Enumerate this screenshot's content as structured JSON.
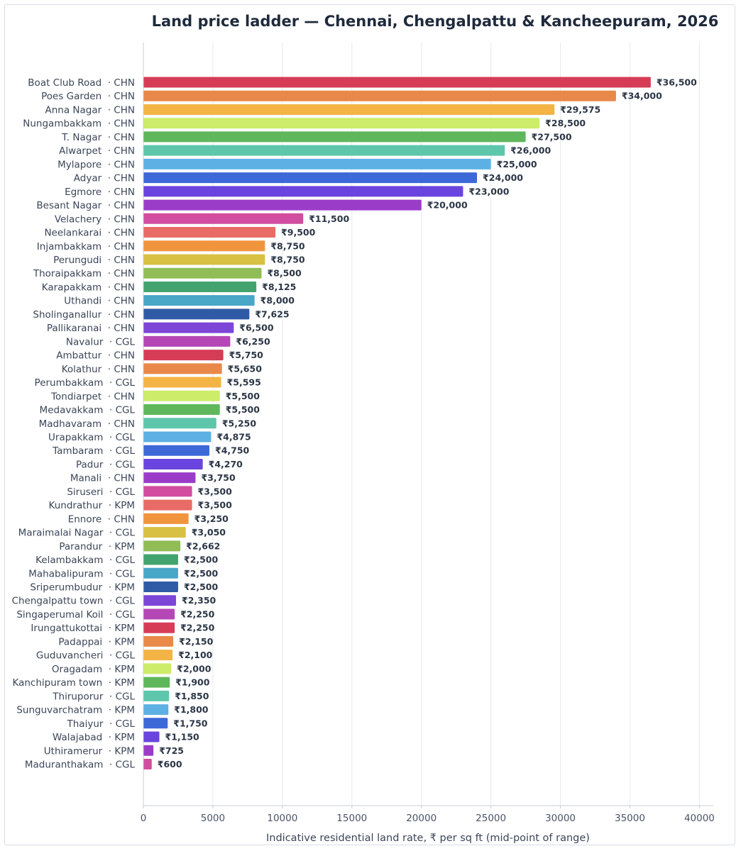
{
  "chart_data": {
    "type": "bar",
    "orientation": "horizontal",
    "title": "Land price ladder — Chennai, Chengalpattu & Kancheepuram, 2026",
    "xlabel": "Indicative residential land rate, ₹ per sq ft (mid-point of range)",
    "ylabel": "",
    "xlim": [
      0,
      41000
    ],
    "xticks": [
      0,
      5000,
      10000,
      15000,
      20000,
      25000,
      30000,
      35000,
      40000
    ],
    "grid": "vertical",
    "legend": "none",
    "categories": [
      "Boat Club Road  · CHN",
      "Poes Garden  · CHN",
      "Anna Nagar  · CHN",
      "Nungambakkam  · CHN",
      "T. Nagar  · CHN",
      "Alwarpet  · CHN",
      "Mylapore  · CHN",
      "Adyar  · CHN",
      "Egmore  · CHN",
      "Besant Nagar  · CHN",
      "Velachery  · CHN",
      "Neelankarai  · CHN",
      "Injambakkam  · CHN",
      "Perungudi  · CHN",
      "Thoraipakkam  · CHN",
      "Karapakkam  · CHN",
      "Uthandi  · CHN",
      "Sholinganallur  · CHN",
      "Pallikaranai  · CHN",
      "Navalur  · CGL",
      "Ambattur  · CHN",
      "Kolathur  · CHN",
      "Perumbakkam  · CGL",
      "Tondiarpet  · CHN",
      "Medavakkam  · CGL",
      "Madhavaram  · CHN",
      "Urapakkam  · CGL",
      "Tambaram  · CGL",
      "Padur  · CGL",
      "Manali  · CHN",
      "Siruseri  · CGL",
      "Kundrathur  · KPM",
      "Ennore  · CHN",
      "Maraimalai Nagar  · CGL",
      "Parandur  · KPM",
      "Kelambakkam  · CGL",
      "Mahabalipuram  · CGL",
      "Sriperumbudur  · KPM",
      "Chengalpattu town  · CGL",
      "Singaperumal Koil  · CGL",
      "Irungattukottai  · KPM",
      "Padappai  · KPM",
      "Guduvancheri  · CGL",
      "Oragadam  · KPM",
      "Kanchipuram town  · KPM",
      "Thiruporur  · CGL",
      "Sunguvarchatram  · KPM",
      "Thaiyur  · CGL",
      "Walajabad  · KPM",
      "Uthiramerur  · KPM",
      "Maduranthakam  · CGL"
    ],
    "values": [
      36500,
      34000,
      29575,
      28500,
      27500,
      26000,
      25000,
      24000,
      23000,
      20000,
      11500,
      9500,
      8750,
      8750,
      8500,
      8125,
      8000,
      7625,
      6500,
      6250,
      5750,
      5650,
      5595,
      5500,
      5500,
      5250,
      4875,
      4750,
      4270,
      3750,
      3500,
      3500,
      3250,
      3050,
      2662,
      2500,
      2500,
      2500,
      2350,
      2250,
      2250,
      2150,
      2100,
      2000,
      1900,
      1850,
      1800,
      1750,
      1150,
      725,
      600
    ],
    "value_labels": [
      "₹36,500",
      "₹34,000",
      "₹29,575",
      "₹28,500",
      "₹27,500",
      "₹26,000",
      "₹25,000",
      "₹24,000",
      "₹23,000",
      "₹20,000",
      "₹11,500",
      "₹9,500",
      "₹8,750",
      "₹8,750",
      "₹8,500",
      "₹8,125",
      "₹8,000",
      "₹7,625",
      "₹6,500",
      "₹6,250",
      "₹5,750",
      "₹5,650",
      "₹5,595",
      "₹5,500",
      "₹5,500",
      "₹5,250",
      "₹4,875",
      "₹4,750",
      "₹4,270",
      "₹3,750",
      "₹3,500",
      "₹3,500",
      "₹3,250",
      "₹3,050",
      "₹2,662",
      "₹2,500",
      "₹2,500",
      "₹2,500",
      "₹2,350",
      "₹2,250",
      "₹2,250",
      "₹2,150",
      "₹2,100",
      "₹2,000",
      "₹1,900",
      "₹1,850",
      "₹1,800",
      "₹1,750",
      "₹1,150",
      "₹725",
      "₹600"
    ],
    "palette": [
      "#d63c56",
      "#e8894a",
      "#f3b445",
      "#cdec6a",
      "#5fb75c",
      "#5ec6ab",
      "#5db0e4",
      "#3d68d8",
      "#6a44de",
      "#9b3cc9",
      "#d24d9f",
      "#e96b66",
      "#f0953d",
      "#d8c142",
      "#90bd56",
      "#43a36e",
      "#48a6c7",
      "#2f5aa6",
      "#7c46d6",
      "#b447b5"
    ]
  }
}
